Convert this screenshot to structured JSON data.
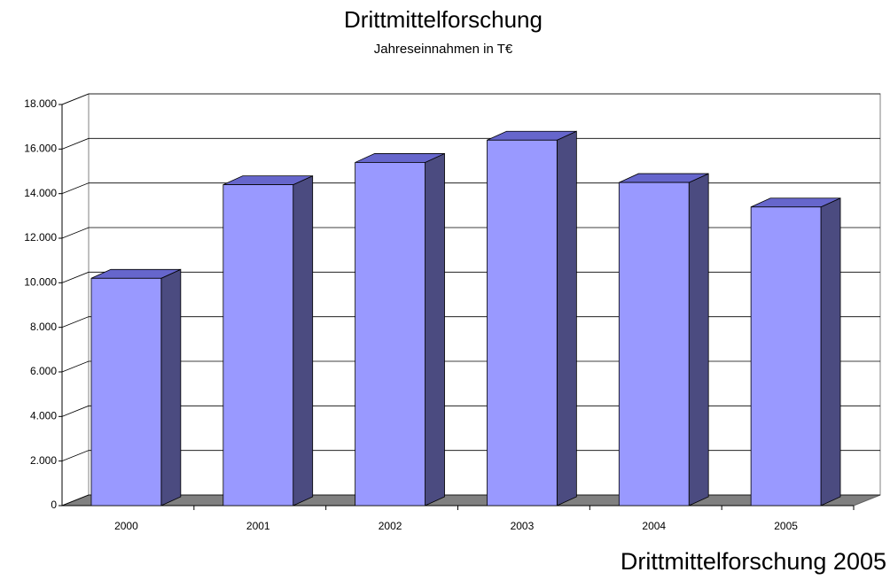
{
  "chart_data": {
    "type": "bar3d",
    "title": "Drittmittelforschung",
    "subtitle": "Jahreseinnahmen in T€",
    "categories": [
      "2000",
      "2001",
      "2002",
      "2003",
      "2004",
      "2005"
    ],
    "values": [
      10200,
      14400,
      15400,
      16400,
      14500,
      13400
    ],
    "color": "#9999ff",
    "ylim": [
      0,
      18000
    ],
    "yticks": [
      0,
      {
        "value": 2000,
        "label": "2.000"
      },
      {
        "value": 4000,
        "label": "4.000"
      },
      {
        "value": 6000,
        "label": "6.000"
      },
      {
        "value": 8000,
        "label": "8.000"
      },
      {
        "value": 10000,
        "label": "10.000"
      },
      {
        "value": 12000,
        "label": "12.000"
      },
      {
        "value": 14000,
        "label": "14.000"
      },
      {
        "value": 16000,
        "label": "16.000"
      },
      {
        "value": 18000,
        "label": "18.000"
      }
    ],
    "grid": true
  },
  "caption": "Drittmittelforschung 2005"
}
